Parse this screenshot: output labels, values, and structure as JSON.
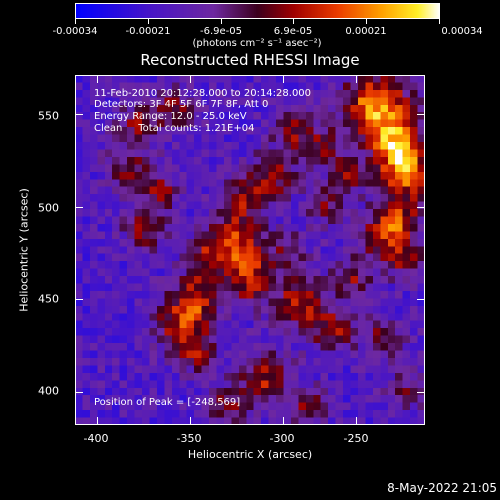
{
  "colorbar": {
    "tick_labels": [
      "-0.00034",
      "-0.00021",
      "-6.9e-05",
      "6.9e-05",
      "0.00021",
      "0.00034"
    ],
    "tick_values": [
      -0.00034,
      -0.00021,
      -6.9e-05,
      6.9e-05,
      0.00021,
      0.00034
    ],
    "range": [
      -0.00034,
      0.00034
    ],
    "units": "(photons cm⁻² s⁻¹ asec⁻²)"
  },
  "chart_data": {
    "type": "heatmap",
    "title": "Reconstructed RHESSI Image",
    "xlabel": "Heliocentric X (arcsec)",
    "ylabel": "Heliocentric Y (arcsec)",
    "xlim": [
      -410,
      -222
    ],
    "ylim": [
      382,
      570
    ],
    "x_ticks": [
      -400,
      -350,
      -300,
      -250
    ],
    "y_ticks": [
      400,
      450,
      500,
      550
    ],
    "value_range": [
      -0.00034,
      0.00034
    ],
    "colormap": "rainbow-like (blue-purple-red-orange-yellow-white)",
    "annotations": {
      "time_range": "11-Feb-2010 20:12:28.000 to 20:14:28.000",
      "detectors": "Detectors: 3F 4F 5F 6F 7F 8F, Att 0",
      "energy_range": "Energy Range: 12.0 - 25.0 keV",
      "method_counts": "Clean     Total counts: 1.21E+04",
      "peak_position": "Position of Peak = [-248,569]"
    },
    "peak": [
      -248,
      569
    ]
  },
  "footer": "8-May-2022 21:05"
}
